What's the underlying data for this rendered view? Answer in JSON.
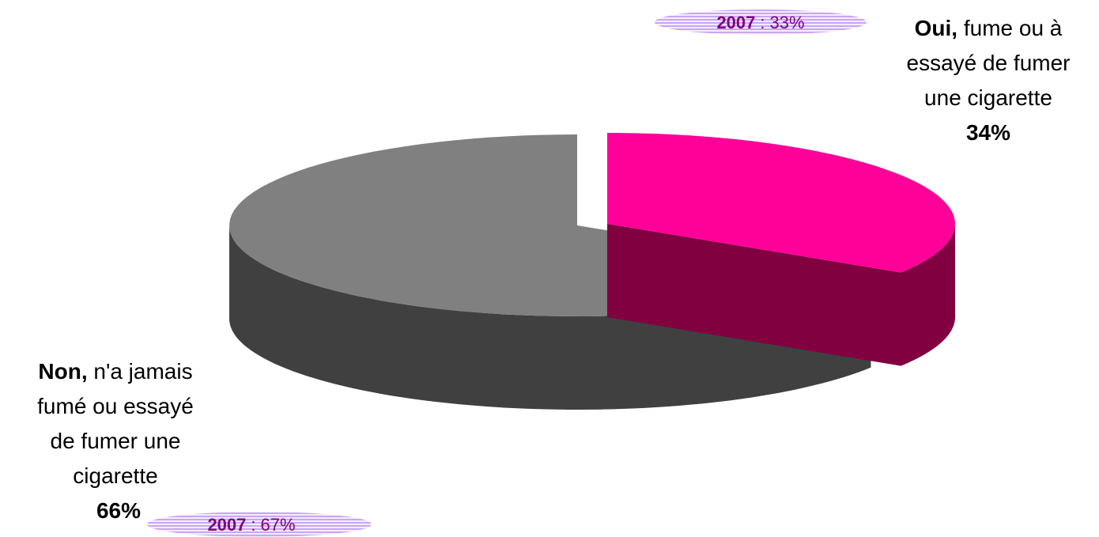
{
  "chart_data": {
    "type": "pie",
    "categories": [
      "Oui,",
      "Non,"
    ],
    "category_notes": [
      "fume ou à essayé de fumer une cigarette",
      "n'a jamais fumé ou essayé de fumer une cigarette"
    ],
    "values": [
      34,
      66
    ],
    "value_labels": [
      "34%",
      "66%"
    ],
    "colors": [
      "#ff0099",
      "#808080"
    ],
    "side_colors": [
      "#800040",
      "#404040"
    ],
    "comparison": {
      "label": "2007",
      "separator": ":",
      "values": [
        33,
        67
      ],
      "value_labels": [
        "33%",
        "67%"
      ]
    }
  }
}
